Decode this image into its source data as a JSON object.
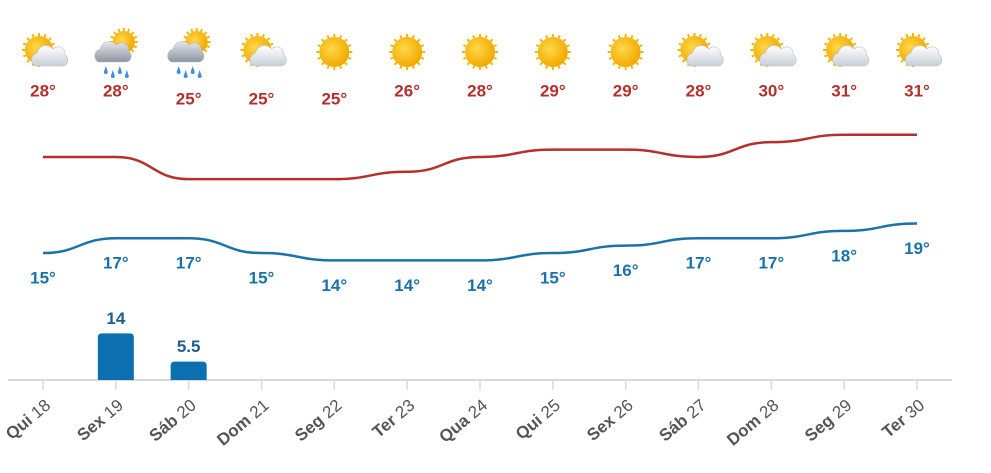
{
  "chart_data": {
    "type": "line",
    "categories": [
      "Qui 18",
      "Sex 19",
      "Sáb 20",
      "Dom 21",
      "Seg 22",
      "Ter 23",
      "Qua 24",
      "Qui 25",
      "Sex 26",
      "Sáb 27",
      "Dom 28",
      "Seg 29",
      "Ter 30"
    ],
    "ylim": [
      10,
      33
    ],
    "y2lim": [
      0,
      30
    ],
    "series": [
      {
        "color": "#b3302e",
        "values": [
          28,
          28,
          25,
          25,
          25,
          26,
          28,
          29,
          29,
          28,
          30,
          31,
          31
        ],
        "value_labels": [
          "28°",
          "28°",
          "25°",
          "25°",
          "25°",
          "26°",
          "28°",
          "29°",
          "29°",
          "28°",
          "30°",
          "31°",
          "31°"
        ]
      },
      {
        "color": "#1a73a8",
        "values": [
          15,
          17,
          17,
          15,
          14,
          14,
          14,
          15,
          16,
          17,
          17,
          18,
          19
        ],
        "value_labels": [
          "15°",
          "17°",
          "17°",
          "15°",
          "14°",
          "14°",
          "14°",
          "15°",
          "16°",
          "17°",
          "17°",
          "18°",
          "19°"
        ]
      },
      {
        "type": "bar",
        "axis": "y2",
        "color": "#0c6fb0",
        "values": [
          null,
          14,
          5.5,
          null,
          null,
          null,
          null,
          null,
          null,
          null,
          null,
          null,
          null
        ]
      }
    ]
  }
}
